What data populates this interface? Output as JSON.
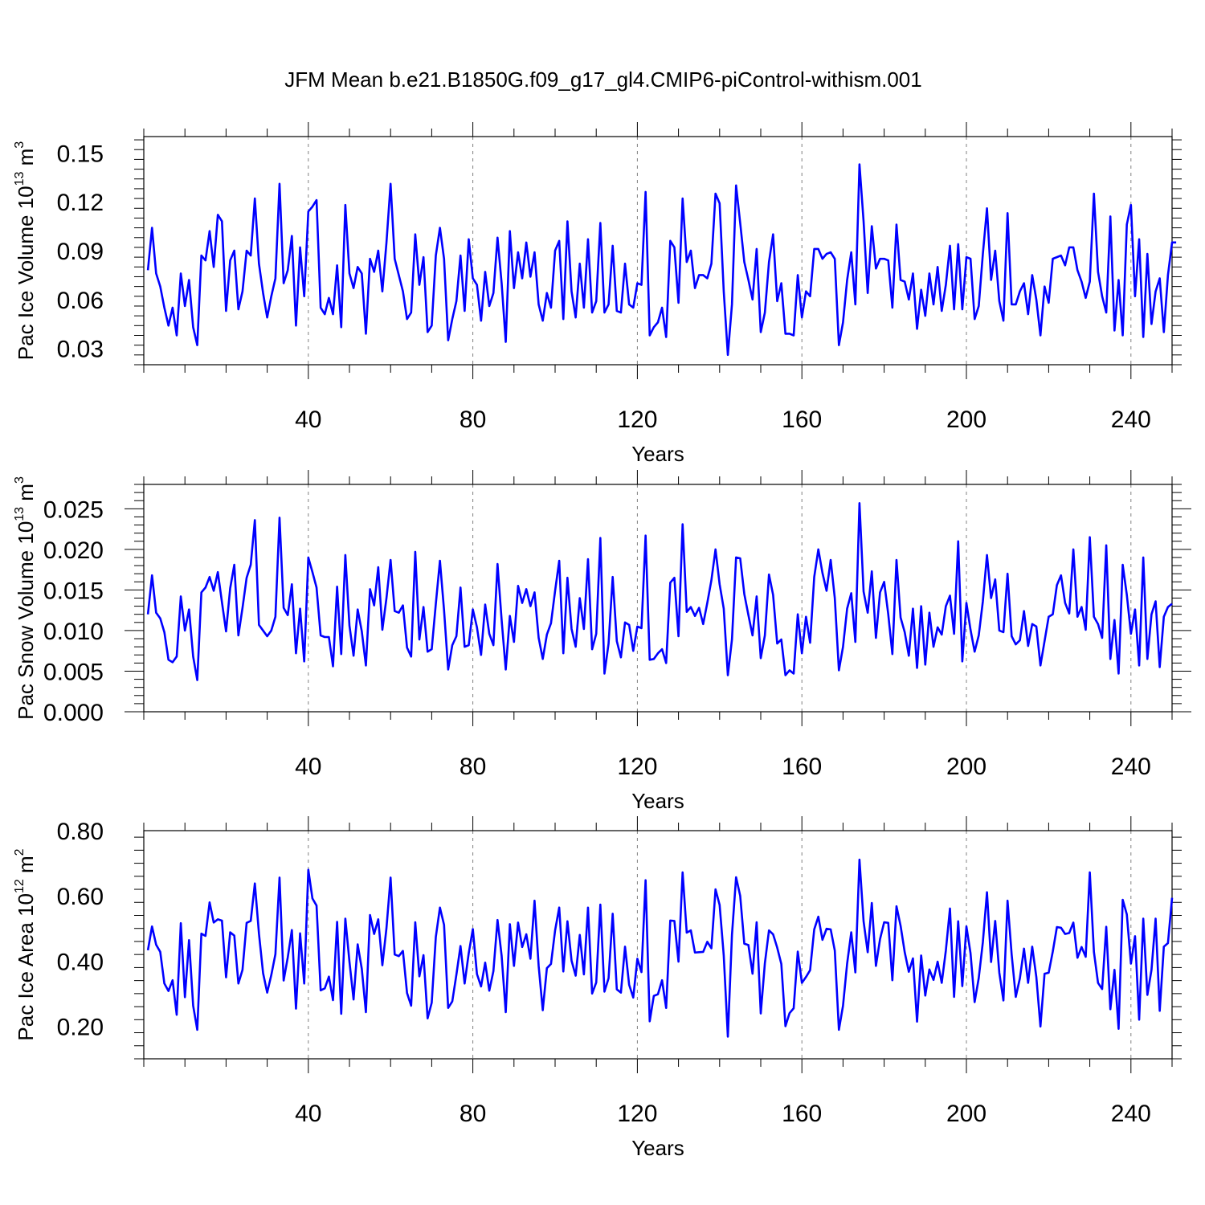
{
  "title": "JFM Mean b.e21.B1850G.f09_g17_gl4.CMIP6-piControl-withism.001",
  "colors": {
    "line": "#0000ff",
    "axis": "#000000",
    "grid": "#808080"
  },
  "chart_data": [
    {
      "type": "line",
      "xlabel": "Years",
      "ylabel": {
        "text": "Pac Ice Volume 10",
        "sup": "13",
        "unit": " m",
        "unit_sup": "3"
      },
      "xlim": [
        0,
        250
      ],
      "ylim": [
        0.02,
        0.16
      ],
      "xticks": [
        40,
        80,
        120,
        160,
        200,
        240
      ],
      "xtick_labels": [
        "40",
        "80",
        "120",
        "160",
        "200",
        "240"
      ],
      "yticks": [
        0.03,
        0.06,
        0.09,
        0.12,
        0.15
      ],
      "ytick_labels": [
        "0.03",
        "0.06",
        "0.09",
        "0.12",
        "0.15"
      ],
      "grid": "vertical dashed at x ticks",
      "series": [
        {
          "x_start": 1,
          "values": [
            0.078,
            0.104,
            0.076,
            0.068,
            0.055,
            0.044,
            0.055,
            0.038,
            0.076,
            0.056,
            0.072,
            0.043,
            0.032,
            0.087,
            0.084,
            0.102,
            0.08,
            0.112,
            0.108,
            0.053,
            0.084,
            0.09,
            0.054,
            0.065,
            0.09,
            0.087,
            0.122,
            0.082,
            0.064,
            0.049,
            0.062,
            0.073,
            0.131,
            0.07,
            0.078,
            0.099,
            0.044,
            0.092,
            0.062,
            0.114,
            0.117,
            0.121,
            0.055,
            0.051,
            0.061,
            0.051,
            0.081,
            0.043,
            0.118,
            0.076,
            0.067,
            0.08,
            0.076,
            0.039,
            0.085,
            0.077,
            0.09,
            0.065,
            0.095,
            0.131,
            0.085,
            0.075,
            0.065,
            0.048,
            0.052,
            0.1,
            0.069,
            0.086,
            0.04,
            0.044,
            0.087,
            0.104,
            0.085,
            0.035,
            0.048,
            0.059,
            0.087,
            0.053,
            0.097,
            0.073,
            0.069,
            0.047,
            0.077,
            0.056,
            0.064,
            0.098,
            0.07,
            0.034,
            0.102,
            0.067,
            0.089,
            0.073,
            0.095,
            0.074,
            0.089,
            0.057,
            0.047,
            0.064,
            0.055,
            0.09,
            0.096,
            0.048,
            0.108,
            0.065,
            0.049,
            0.082,
            0.055,
            0.097,
            0.052,
            0.059,
            0.107,
            0.052,
            0.057,
            0.093,
            0.053,
            0.052,
            0.082,
            0.057,
            0.055,
            0.07,
            0.069,
            0.126,
            0.038,
            0.043,
            0.046,
            0.055,
            0.037,
            0.096,
            0.092,
            0.058,
            0.122,
            0.083,
            0.09,
            0.067,
            0.075,
            0.075,
            0.073,
            0.082,
            0.125,
            0.119,
            0.065,
            0.026,
            0.057,
            0.13,
            0.107,
            0.083,
            0.072,
            0.06,
            0.091,
            0.04,
            0.052,
            0.083,
            0.1,
            0.059,
            0.07,
            0.039,
            0.039,
            0.038,
            0.075,
            0.049,
            0.065,
            0.062,
            0.091,
            0.091,
            0.085,
            0.088,
            0.089,
            0.085,
            0.032,
            0.046,
            0.072,
            0.089,
            0.057,
            0.143,
            0.108,
            0.064,
            0.105,
            0.079,
            0.085,
            0.085,
            0.084,
            0.055,
            0.106,
            0.072,
            0.071,
            0.06,
            0.076,
            0.042,
            0.066,
            0.05,
            0.076,
            0.057,
            0.08,
            0.053,
            0.069,
            0.093,
            0.054,
            0.094,
            0.054,
            0.086,
            0.085,
            0.048,
            0.056,
            0.088,
            0.116,
            0.072,
            0.09,
            0.059,
            0.047,
            0.113,
            0.057,
            0.057,
            0.065,
            0.07,
            0.051,
            0.075,
            0.06,
            0.038,
            0.068,
            0.058,
            0.085,
            0.086,
            0.087,
            0.081,
            0.092,
            0.092,
            0.078,
            0.071,
            0.061,
            0.071,
            0.125,
            0.077,
            0.062,
            0.052,
            0.111,
            0.041,
            0.072,
            0.038,
            0.106,
            0.118,
            0.062,
            0.097,
            0.037,
            0.088,
            0.045,
            0.065,
            0.073,
            0.04,
            0.075,
            0.095,
            0.095
          ]
        }
      ]
    },
    {
      "type": "line",
      "xlabel": "Years",
      "ylabel": {
        "text": "Pac Snow Volume 10",
        "sup": "13",
        "unit": " m",
        "unit_sup": "3"
      },
      "xlim": [
        0,
        250
      ],
      "ylim": [
        0.0,
        0.028
      ],
      "xticks": [
        40,
        80,
        120,
        160,
        200,
        240
      ],
      "xtick_labels": [
        "40",
        "80",
        "120",
        "160",
        "200",
        "240"
      ],
      "yticks": [
        0.0,
        0.005,
        0.01,
        0.015,
        0.02,
        0.025
      ],
      "ytick_labels": [
        "0.000",
        "0.005",
        "0.010",
        "0.015",
        "0.020",
        "0.025"
      ],
      "grid": "vertical dashed at x ticks",
      "series": [
        {
          "x_start": 1,
          "values": [
            0.012,
            0.0168,
            0.0122,
            0.0115,
            0.0098,
            0.0064,
            0.0061,
            0.0068,
            0.0142,
            0.01,
            0.0126,
            0.0068,
            0.0039,
            0.0147,
            0.0153,
            0.0166,
            0.0149,
            0.0172,
            0.0135,
            0.0099,
            0.0152,
            0.0181,
            0.0094,
            0.0128,
            0.0165,
            0.0181,
            0.0236,
            0.0107,
            0.01,
            0.0093,
            0.01,
            0.0117,
            0.0239,
            0.0128,
            0.0119,
            0.0157,
            0.0072,
            0.0127,
            0.0062,
            0.019,
            0.0172,
            0.0153,
            0.0094,
            0.0092,
            0.0092,
            0.0056,
            0.0154,
            0.0071,
            0.0193,
            0.0106,
            0.0069,
            0.0126,
            0.0099,
            0.0057,
            0.0151,
            0.0131,
            0.0178,
            0.0101,
            0.014,
            0.0187,
            0.0124,
            0.0122,
            0.0131,
            0.0079,
            0.0068,
            0.0197,
            0.0089,
            0.0129,
            0.0074,
            0.0077,
            0.0133,
            0.0186,
            0.0125,
            0.0052,
            0.0082,
            0.0093,
            0.0153,
            0.008,
            0.0082,
            0.0126,
            0.0104,
            0.007,
            0.0132,
            0.0096,
            0.0082,
            0.0182,
            0.0113,
            0.0052,
            0.0118,
            0.0086,
            0.0155,
            0.0134,
            0.0151,
            0.013,
            0.0147,
            0.0091,
            0.0065,
            0.0095,
            0.0109,
            0.0149,
            0.0186,
            0.0072,
            0.0165,
            0.0102,
            0.008,
            0.014,
            0.0102,
            0.0188,
            0.0077,
            0.0096,
            0.0214,
            0.0047,
            0.0084,
            0.0166,
            0.0087,
            0.0067,
            0.011,
            0.0107,
            0.0075,
            0.0105,
            0.0103,
            0.0217,
            0.0064,
            0.0065,
            0.0072,
            0.0077,
            0.006,
            0.0159,
            0.0165,
            0.0093,
            0.0231,
            0.0123,
            0.0129,
            0.0118,
            0.0128,
            0.0108,
            0.0134,
            0.0162,
            0.02,
            0.0157,
            0.0127,
            0.0045,
            0.0089,
            0.019,
            0.0189,
            0.0145,
            0.0119,
            0.0094,
            0.0142,
            0.0066,
            0.0094,
            0.0169,
            0.0144,
            0.0084,
            0.0089,
            0.0045,
            0.0051,
            0.0047,
            0.012,
            0.0072,
            0.0117,
            0.0085,
            0.0166,
            0.02,
            0.0171,
            0.0149,
            0.0187,
            0.014,
            0.0051,
            0.008,
            0.0127,
            0.0146,
            0.0086,
            0.0257,
            0.0148,
            0.0122,
            0.0173,
            0.0091,
            0.0147,
            0.016,
            0.012,
            0.0071,
            0.0187,
            0.0116,
            0.0098,
            0.0069,
            0.0127,
            0.0054,
            0.013,
            0.0058,
            0.0122,
            0.008,
            0.0104,
            0.0095,
            0.013,
            0.0143,
            0.0096,
            0.021,
            0.0062,
            0.0134,
            0.0101,
            0.0074,
            0.0094,
            0.0136,
            0.0193,
            0.014,
            0.0163,
            0.01,
            0.0098,
            0.017,
            0.0093,
            0.0083,
            0.0088,
            0.0124,
            0.0081,
            0.0108,
            0.0105,
            0.0057,
            0.0087,
            0.0117,
            0.012,
            0.0156,
            0.0168,
            0.0134,
            0.0121,
            0.02,
            0.0117,
            0.0129,
            0.0101,
            0.0215,
            0.0117,
            0.0108,
            0.0091,
            0.0205,
            0.0065,
            0.0113,
            0.0047,
            0.0181,
            0.0144,
            0.0096,
            0.0126,
            0.0057,
            0.019,
            0.0065,
            0.012,
            0.0136,
            0.0055,
            0.0117,
            0.0129,
            0.0133
          ]
        }
      ]
    },
    {
      "type": "line",
      "xlabel": "Years",
      "ylabel": {
        "text": "Pac Ice Area 10",
        "sup": "12",
        "unit": " m",
        "unit_sup": "2"
      },
      "xlim": [
        0,
        250
      ],
      "ylim": [
        0.1,
        0.8
      ],
      "xticks": [
        40,
        80,
        120,
        160,
        200,
        240
      ],
      "xtick_labels": [
        "40",
        "80",
        "120",
        "160",
        "200",
        "240"
      ],
      "yticks": [
        0.2,
        0.4,
        0.6,
        0.8
      ],
      "ytick_labels": [
        "0.20",
        "0.40",
        "0.60",
        "0.80"
      ],
      "grid": "vertical dashed at x ticks",
      "series": [
        {
          "x_start": 1,
          "values": [
            0.433,
            0.506,
            0.45,
            0.428,
            0.331,
            0.308,
            0.341,
            0.235,
            0.516,
            0.289,
            0.464,
            0.263,
            0.189,
            0.484,
            0.477,
            0.58,
            0.518,
            0.528,
            0.524,
            0.35,
            0.488,
            0.478,
            0.331,
            0.373,
            0.517,
            0.523,
            0.638,
            0.484,
            0.363,
            0.303,
            0.357,
            0.421,
            0.656,
            0.34,
            0.411,
            0.495,
            0.254,
            0.485,
            0.331,
            0.68,
            0.592,
            0.57,
            0.31,
            0.316,
            0.352,
            0.28,
            0.52,
            0.238,
            0.53,
            0.398,
            0.282,
            0.451,
            0.376,
            0.243,
            0.541,
            0.483,
            0.528,
            0.387,
            0.501,
            0.656,
            0.42,
            0.415,
            0.431,
            0.302,
            0.263,
            0.519,
            0.353,
            0.418,
            0.224,
            0.272,
            0.474,
            0.564,
            0.511,
            0.256,
            0.276,
            0.358,
            0.446,
            0.331,
            0.424,
            0.498,
            0.36,
            0.322,
            0.395,
            0.309,
            0.369,
            0.526,
            0.416,
            0.243,
            0.513,
            0.385,
            0.518,
            0.443,
            0.482,
            0.407,
            0.585,
            0.385,
            0.249,
            0.378,
            0.391,
            0.494,
            0.564,
            0.368,
            0.522,
            0.401,
            0.355,
            0.48,
            0.359,
            0.564,
            0.3,
            0.334,
            0.573,
            0.306,
            0.347,
            0.545,
            0.313,
            0.303,
            0.444,
            0.327,
            0.288,
            0.407,
            0.366,
            0.648,
            0.215,
            0.293,
            0.298,
            0.341,
            0.256,
            0.524,
            0.523,
            0.398,
            0.672,
            0.487,
            0.494,
            0.426,
            0.427,
            0.428,
            0.459,
            0.439,
            0.62,
            0.572,
            0.417,
            0.168,
            0.48,
            0.657,
            0.6,
            0.453,
            0.449,
            0.361,
            0.519,
            0.239,
            0.393,
            0.494,
            0.482,
            0.441,
            0.391,
            0.2,
            0.24,
            0.255,
            0.429,
            0.333,
            0.351,
            0.372,
            0.497,
            0.536,
            0.465,
            0.499,
            0.497,
            0.432,
            0.189,
            0.263,
            0.392,
            0.488,
            0.365,
            0.711,
            0.522,
            0.427,
            0.578,
            0.385,
            0.467,
            0.519,
            0.517,
            0.341,
            0.568,
            0.508,
            0.427,
            0.367,
            0.408,
            0.214,
            0.417,
            0.294,
            0.374,
            0.342,
            0.398,
            0.333,
            0.432,
            0.561,
            0.29,
            0.522,
            0.323,
            0.506,
            0.424,
            0.274,
            0.348,
            0.458,
            0.611,
            0.397,
            0.523,
            0.364,
            0.279,
            0.585,
            0.42,
            0.29,
            0.347,
            0.438,
            0.333,
            0.444,
            0.351,
            0.199,
            0.361,
            0.364,
            0.429,
            0.504,
            0.502,
            0.483,
            0.486,
            0.518,
            0.41,
            0.443,
            0.413,
            0.672,
            0.428,
            0.333,
            0.314,
            0.505,
            0.252,
            0.373,
            0.192,
            0.588,
            0.543,
            0.392,
            0.476,
            0.22,
            0.53,
            0.296,
            0.373,
            0.53,
            0.247,
            0.444,
            0.455,
            0.594
          ]
        }
      ]
    }
  ]
}
